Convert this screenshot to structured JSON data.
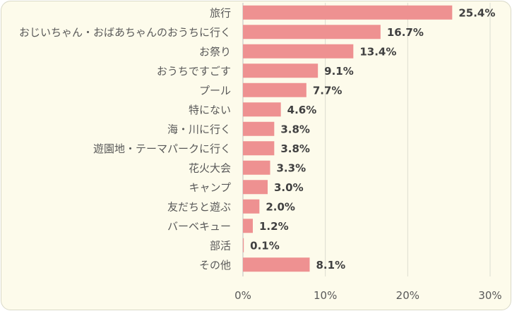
{
  "chart_data": {
    "type": "bar",
    "orientation": "horizontal",
    "categories": [
      "旅行",
      "おじいちゃん・おばあちゃんのおうちに行く",
      "お祭り",
      "おうちですごす",
      "プール",
      "特にない",
      "海・川に行く",
      "遊園地・テーマパークに行く",
      "花火大会",
      "キャンプ",
      "友だちと遊ぶ",
      "バーベキュー",
      "部活",
      "その他"
    ],
    "values": [
      25.4,
      16.7,
      13.4,
      9.1,
      7.7,
      4.6,
      3.8,
      3.8,
      3.3,
      3.0,
      2.0,
      1.2,
      0.1,
      8.1
    ],
    "value_labels": [
      "25.4%",
      "16.7%",
      "13.4%",
      "9.1%",
      "7.7%",
      "4.6%",
      "3.8%",
      "3.8%",
      "3.3%",
      "3.0%",
      "2.0%",
      "1.2%",
      "0.1%",
      "8.1%"
    ],
    "xlim": [
      0,
      30
    ],
    "xticks": [
      0,
      10,
      20,
      30
    ],
    "xtick_labels": [
      "0%",
      "10%",
      "20%",
      "30%"
    ],
    "grid": true,
    "bar_color": "#ee9191",
    "background_color": "#fdfbeb",
    "title": "",
    "xlabel": "",
    "ylabel": ""
  }
}
